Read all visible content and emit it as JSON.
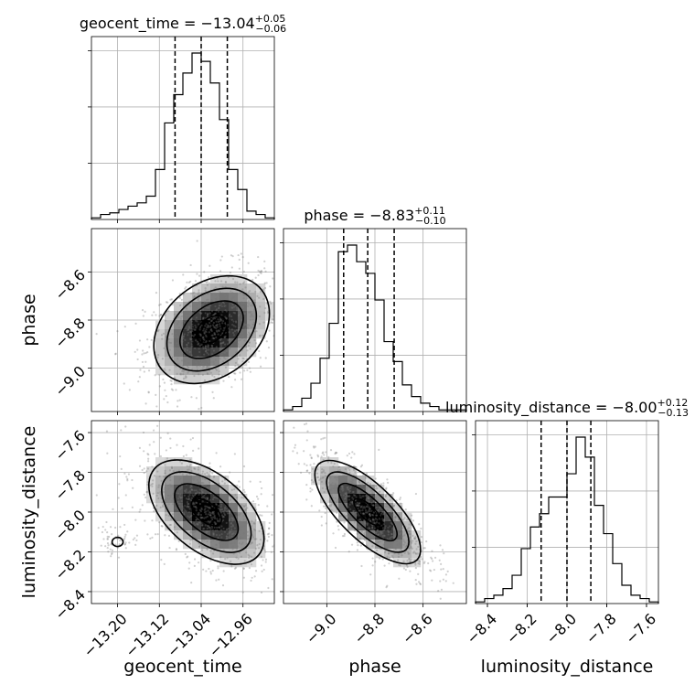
{
  "chart_data": {
    "type": "corner",
    "parameters": [
      "geocent_time",
      "phase",
      "luminosity_distance"
    ],
    "ranges": {
      "geocent_time": [
        -13.25,
        -12.9
      ],
      "phase": [
        -9.18,
        -8.42
      ],
      "luminosity_distance": [
        -8.46,
        -7.54
      ]
    },
    "grid": true,
    "titles": [
      {
        "param": "geocent_time",
        "prefix": "geocent_time = ",
        "value": "−13.04",
        "upper": "+0.05",
        "lower": "−0.06"
      },
      {
        "param": "phase",
        "prefix": "phase = ",
        "value": "−8.83",
        "upper": "+0.11",
        "lower": "−0.10"
      },
      {
        "param": "luminosity_distance",
        "prefix": "luminosity_distance = ",
        "value": "−8.00",
        "upper": "+0.12",
        "lower": "−0.13"
      }
    ],
    "quantiles": {
      "geocent_time": [
        -13.09,
        -13.04,
        -12.99
      ],
      "phase": [
        -8.93,
        -8.83,
        -8.72
      ],
      "luminosity_distance": [
        -8.13,
        -8.0,
        -7.88
      ]
    },
    "ticks": {
      "geocent_time": {
        "values": [
          -13.2,
          -13.12,
          -13.04,
          -12.96
        ],
        "labels": [
          "−13.20",
          "−13.12",
          "−13.04",
          "−12.96"
        ]
      },
      "phase": {
        "values": [
          -9.0,
          -8.8,
          -8.6
        ],
        "labels": [
          "−9.0",
          "−8.8",
          "−8.6"
        ]
      },
      "luminosity_distance": {
        "values": [
          -8.4,
          -8.2,
          -8.0,
          -7.8,
          -7.6
        ],
        "labels": [
          "−8.4",
          "−8.2",
          "−8.0",
          "−7.8",
          "−7.6"
        ]
      }
    },
    "histograms": {
      "geocent_time": {
        "edges_start": -13.25,
        "bin_width": 0.0175,
        "counts": [
          1,
          3,
          4,
          6,
          8,
          10,
          14,
          30,
          58,
          75,
          88,
          100,
          95,
          82,
          60,
          30,
          18,
          5,
          3,
          1
        ]
      },
      "phase": {
        "edges_start": -9.18,
        "bin_width": 0.038,
        "counts": [
          1,
          3,
          8,
          17,
          32,
          53,
          96,
          100,
          90,
          83,
          67,
          42,
          30,
          16,
          9,
          5,
          3,
          1,
          1,
          1
        ]
      },
      "luminosity_distance": {
        "edges_start": -8.46,
        "bin_width": 0.046,
        "counts": [
          1,
          3,
          5,
          9,
          17,
          33,
          46,
          54,
          64,
          64,
          78,
          100,
          88,
          59,
          42,
          24,
          11,
          5,
          3,
          1
        ]
      }
    },
    "pairs": [
      {
        "x": "geocent_time",
        "y": "phase",
        "mean": [
          -13.02,
          -8.84
        ],
        "std": [
          0.055,
          0.11
        ],
        "corr": 0.35,
        "extra_blob": null
      },
      {
        "x": "geocent_time",
        "y": "luminosity_distance",
        "mean": [
          -13.03,
          -8.0
        ],
        "std": [
          0.055,
          0.13
        ],
        "corr": -0.55,
        "extra_blob": [
          -13.2,
          -8.15
        ]
      },
      {
        "x": "phase",
        "y": "luminosity_distance",
        "mean": [
          -8.83,
          -8.0
        ],
        "std": [
          0.11,
          0.13
        ],
        "corr": -0.75,
        "extra_blob": null
      }
    ],
    "contour_levels_sigma": [
      0.5,
      1.0,
      1.5,
      2.0
    ]
  }
}
